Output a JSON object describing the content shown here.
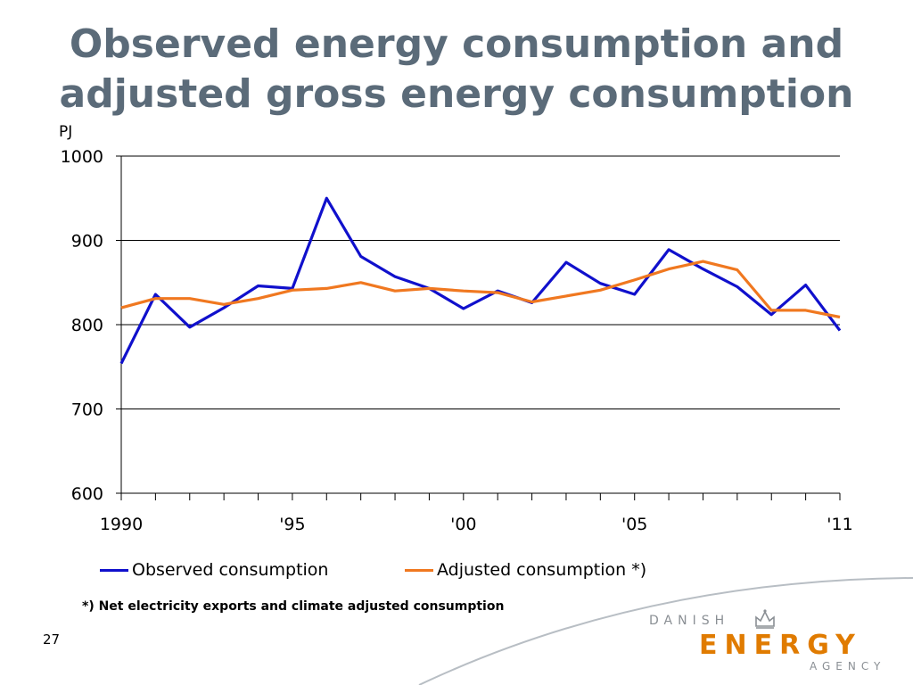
{
  "slide": {
    "title_line1": "Observed energy consumption and",
    "title_line2": "adjusted gross energy consumption",
    "footnote": "*) Net electricity exports and climate adjusted consumption",
    "page_number": "27"
  },
  "logo": {
    "line1": "DANISH",
    "line2": "ENERGY",
    "line3": "AGENCY"
  },
  "colors": {
    "title": "#5b6b79",
    "observed": "#1010cc",
    "adjusted": "#f07820",
    "accent_logo": "#e07b00"
  },
  "chart_data": {
    "type": "line",
    "ylabel": "PJ",
    "ylim": [
      600,
      1000
    ],
    "yticks": [
      600,
      700,
      800,
      900,
      1000
    ],
    "xlim": [
      1990,
      2011
    ],
    "xticks": [
      {
        "value": 1990,
        "label": "1990"
      },
      {
        "value": 1995,
        "label": "'95"
      },
      {
        "value": 2000,
        "label": "'00"
      },
      {
        "value": 2005,
        "label": "'05"
      },
      {
        "value": 2011,
        "label": "'11"
      }
    ],
    "grid": "horizontal",
    "legend_position": "bottom",
    "x": [
      1990,
      1991,
      1992,
      1993,
      1994,
      1995,
      1996,
      1997,
      1998,
      1999,
      2000,
      2001,
      2002,
      2003,
      2004,
      2005,
      2006,
      2007,
      2008,
      2009,
      2010,
      2011
    ],
    "series": [
      {
        "name": "Observed consumption",
        "color": "#1010cc",
        "values": [
          754,
          836,
          797,
          820,
          846,
          843,
          950,
          881,
          857,
          843,
          819,
          840,
          826,
          874,
          849,
          836,
          889,
          866,
          845,
          812,
          847,
          793
        ]
      },
      {
        "name": "Adjusted consumption *)",
        "color": "#f07820",
        "values": [
          820,
          831,
          831,
          824,
          831,
          841,
          843,
          850,
          840,
          843,
          840,
          838,
          827,
          834,
          841,
          853,
          866,
          875,
          865,
          817,
          817,
          809
        ]
      }
    ]
  }
}
